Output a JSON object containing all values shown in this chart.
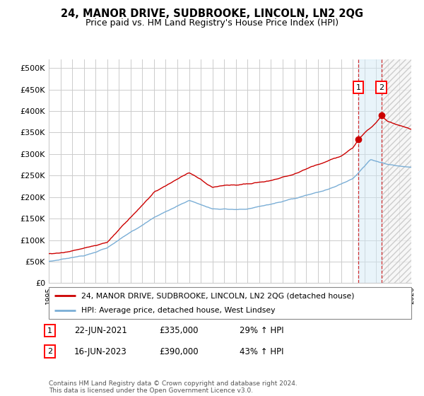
{
  "title": "24, MANOR DRIVE, SUDBROOKE, LINCOLN, LN2 2QG",
  "subtitle": "Price paid vs. HM Land Registry's House Price Index (HPI)",
  "legend_line1": "24, MANOR DRIVE, SUDBROOKE, LINCOLN, LN2 2QG (detached house)",
  "legend_line2": "HPI: Average price, detached house, West Lindsey",
  "annotation1_label": "1",
  "annotation1_date": "22-JUN-2021",
  "annotation1_price": "£335,000",
  "annotation1_hpi": "29% ↑ HPI",
  "annotation2_label": "2",
  "annotation2_date": "16-JUN-2023",
  "annotation2_price": "£390,000",
  "annotation2_hpi": "43% ↑ HPI",
  "red_line_color": "#cc0000",
  "blue_line_color": "#7aaed6",
  "background_color": "#ffffff",
  "grid_color": "#cccccc",
  "title_fontsize": 10.5,
  "subtitle_fontsize": 9,
  "ylim": [
    0,
    520000
  ],
  "yticks": [
    0,
    50000,
    100000,
    150000,
    200000,
    250000,
    300000,
    350000,
    400000,
    450000,
    500000
  ],
  "xmin": 1995,
  "xmax": 2026,
  "sale1_x": 2021.47,
  "sale1_y": 335000,
  "sale2_x": 2023.45,
  "sale2_y": 390000,
  "footer_text": "Contains HM Land Registry data © Crown copyright and database right 2024.\nThis data is licensed under the Open Government Licence v3.0."
}
